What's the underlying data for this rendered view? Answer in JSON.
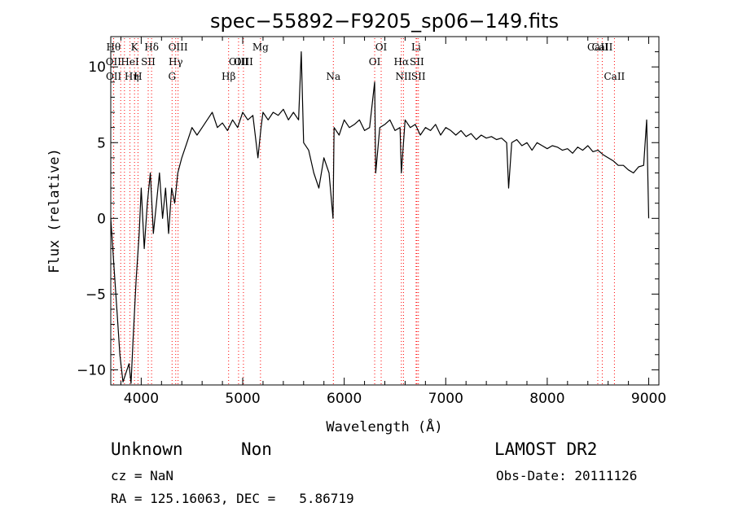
{
  "chart_data": {
    "type": "line",
    "title": "spec−55892−F9205_sp06−149.fits",
    "xlabel": "Wavelength (Å)",
    "ylabel": "Flux (relative)",
    "xlim": [
      3700,
      9100
    ],
    "ylim": [
      -11,
      12
    ],
    "x_ticks": [
      4000,
      5000,
      6000,
      7000,
      8000,
      9000
    ],
    "y_ticks": [
      -10,
      -5,
      0,
      5,
      10
    ],
    "x_tick_labels": [
      "4000",
      "5000",
      "6000",
      "7000",
      "8000",
      "9000"
    ],
    "y_tick_labels": [
      "−10",
      "−5",
      "0",
      "5",
      "10"
    ],
    "grid": false,
    "line_color": "#000000",
    "marker_color": "#ff0000",
    "series": [
      {
        "x": [
          3700,
          3730,
          3760,
          3790,
          3820,
          3850,
          3880,
          3900,
          3920,
          3950,
          3980,
          4000,
          4030,
          4060,
          4090,
          4120,
          4150,
          4180,
          4210,
          4240,
          4270,
          4300,
          4330,
          4360,
          4400,
          4450,
          4500,
          4550,
          4600,
          4650,
          4700,
          4750,
          4800,
          4850,
          4900,
          4950,
          5000,
          5050,
          5100,
          5150,
          5180,
          5200,
          5250,
          5300,
          5350,
          5400,
          5450,
          5500,
          5550,
          5577,
          5600,
          5650,
          5700,
          5750,
          5800,
          5850,
          5890,
          5900,
          5950,
          6000,
          6050,
          6100,
          6150,
          6200,
          6250,
          6300,
          6310,
          6350,
          6400,
          6450,
          6500,
          6550,
          6563,
          6600,
          6650,
          6700,
          6750,
          6800,
          6850,
          6900,
          6950,
          7000,
          7050,
          7100,
          7150,
          7200,
          7250,
          7300,
          7350,
          7400,
          7450,
          7500,
          7550,
          7600,
          7620,
          7650,
          7700,
          7750,
          7800,
          7850,
          7900,
          7950,
          8000,
          8050,
          8100,
          8150,
          8200,
          8250,
          8300,
          8350,
          8400,
          8450,
          8500,
          8550,
          8600,
          8650,
          8700,
          8750,
          8800,
          8850,
          8900,
          8950,
          8980,
          9000
        ],
        "y": [
          0,
          -3,
          -6,
          -9,
          -10.8,
          -10.2,
          -9.6,
          -10.9,
          -8,
          -4,
          -1,
          2,
          -2,
          1,
          3,
          -1,
          1,
          3,
          0,
          2,
          -1,
          2,
          1,
          3,
          4,
          5,
          6,
          5.5,
          6,
          6.5,
          7,
          6,
          6.3,
          5.8,
          6.5,
          6,
          7,
          6.5,
          6.8,
          4,
          6,
          7,
          6.5,
          7,
          6.8,
          7.2,
          6.5,
          7,
          6.5,
          11,
          5,
          4.5,
          3,
          2,
          4,
          3,
          0,
          6,
          5.5,
          6.5,
          6,
          6.2,
          6.5,
          5.8,
          6,
          9,
          3,
          6,
          6.2,
          6.5,
          5.8,
          6,
          3,
          6.5,
          6,
          6.2,
          5.5,
          6,
          5.8,
          6.2,
          5.5,
          6,
          5.8,
          5.5,
          5.8,
          5.4,
          5.6,
          5.2,
          5.5,
          5.3,
          5.4,
          5.2,
          5.3,
          5,
          2,
          5,
          5.2,
          4.8,
          5,
          4.5,
          5,
          4.8,
          4.6,
          4.8,
          4.7,
          4.5,
          4.6,
          4.3,
          4.7,
          4.5,
          4.8,
          4.4,
          4.5,
          4.2,
          4,
          3.8,
          3.5,
          3.5,
          3.2,
          3,
          3.4,
          3.5,
          6.5,
          0
        ]
      }
    ],
    "line_markers": [
      {
        "label": "Hθ",
        "x": 3798,
        "row": 1,
        "anchor": "end"
      },
      {
        "label": "OII",
        "x": 3727,
        "row": 2,
        "anchor": "middle"
      },
      {
        "label": "OII",
        "x": 3729,
        "row": 3,
        "anchor": "middle"
      },
      {
        "label": "Hη",
        "x": 3835,
        "row": 3,
        "anchor": "start"
      },
      {
        "label": "K",
        "x": 3934,
        "row": 1,
        "anchor": "middle"
      },
      {
        "label": "HeI",
        "x": 3889,
        "row": 2,
        "anchor": "middle"
      },
      {
        "label": "H",
        "x": 3968,
        "row": 3,
        "anchor": "middle"
      },
      {
        "label": "SII",
        "x": 4069,
        "row": 2,
        "anchor": "middle"
      },
      {
        "label": "Hδ",
        "x": 4102,
        "row": 1,
        "anchor": "middle"
      },
      {
        "label": "OIII",
        "x": 4363,
        "row": 1,
        "anchor": "middle"
      },
      {
        "label": "Hγ",
        "x": 4340,
        "row": 2,
        "anchor": "middle"
      },
      {
        "label": "G",
        "x": 4304,
        "row": 3,
        "anchor": "middle"
      },
      {
        "label": "Hβ",
        "x": 4861,
        "row": 3,
        "anchor": "middle"
      },
      {
        "label": "OIII",
        "x": 4959,
        "row": 2,
        "anchor": "middle"
      },
      {
        "label": "OIII",
        "x": 5007,
        "row": 2,
        "anchor": "middle"
      },
      {
        "label": "Mg",
        "x": 5175,
        "row": 1,
        "anchor": "middle"
      },
      {
        "label": "Na",
        "x": 5893,
        "row": 3,
        "anchor": "middle"
      },
      {
        "label": "OI",
        "x": 6300,
        "row": 2,
        "anchor": "middle"
      },
      {
        "label": "OI",
        "x": 6364,
        "row": 1,
        "anchor": "middle"
      },
      {
        "label": "Hα",
        "x": 6563,
        "row": 2,
        "anchor": "middle"
      },
      {
        "label": "NII",
        "x": 6584,
        "row": 3,
        "anchor": "middle"
      },
      {
        "label": "Li",
        "x": 6708,
        "row": 1,
        "anchor": "middle"
      },
      {
        "label": "SII",
        "x": 6716,
        "row": 2,
        "anchor": "middle"
      },
      {
        "label": "SII",
        "x": 6731,
        "row": 3,
        "anchor": "middle"
      },
      {
        "label": "CaII",
        "x": 8498,
        "row": 1,
        "anchor": "middle"
      },
      {
        "label": "CaII",
        "x": 8542,
        "row": 1,
        "anchor": "middle"
      },
      {
        "label": "CaII",
        "x": 8662,
        "row": 3,
        "anchor": "middle"
      }
    ]
  },
  "footer": {
    "class_label": "Unknown",
    "subclass_label": "Non",
    "survey": "LAMOST DR2",
    "cz": "cz = NaN",
    "obs_date": "Obs-Date: 20111126",
    "coords": "RA = 125.16063, DEC =   5.86719"
  }
}
